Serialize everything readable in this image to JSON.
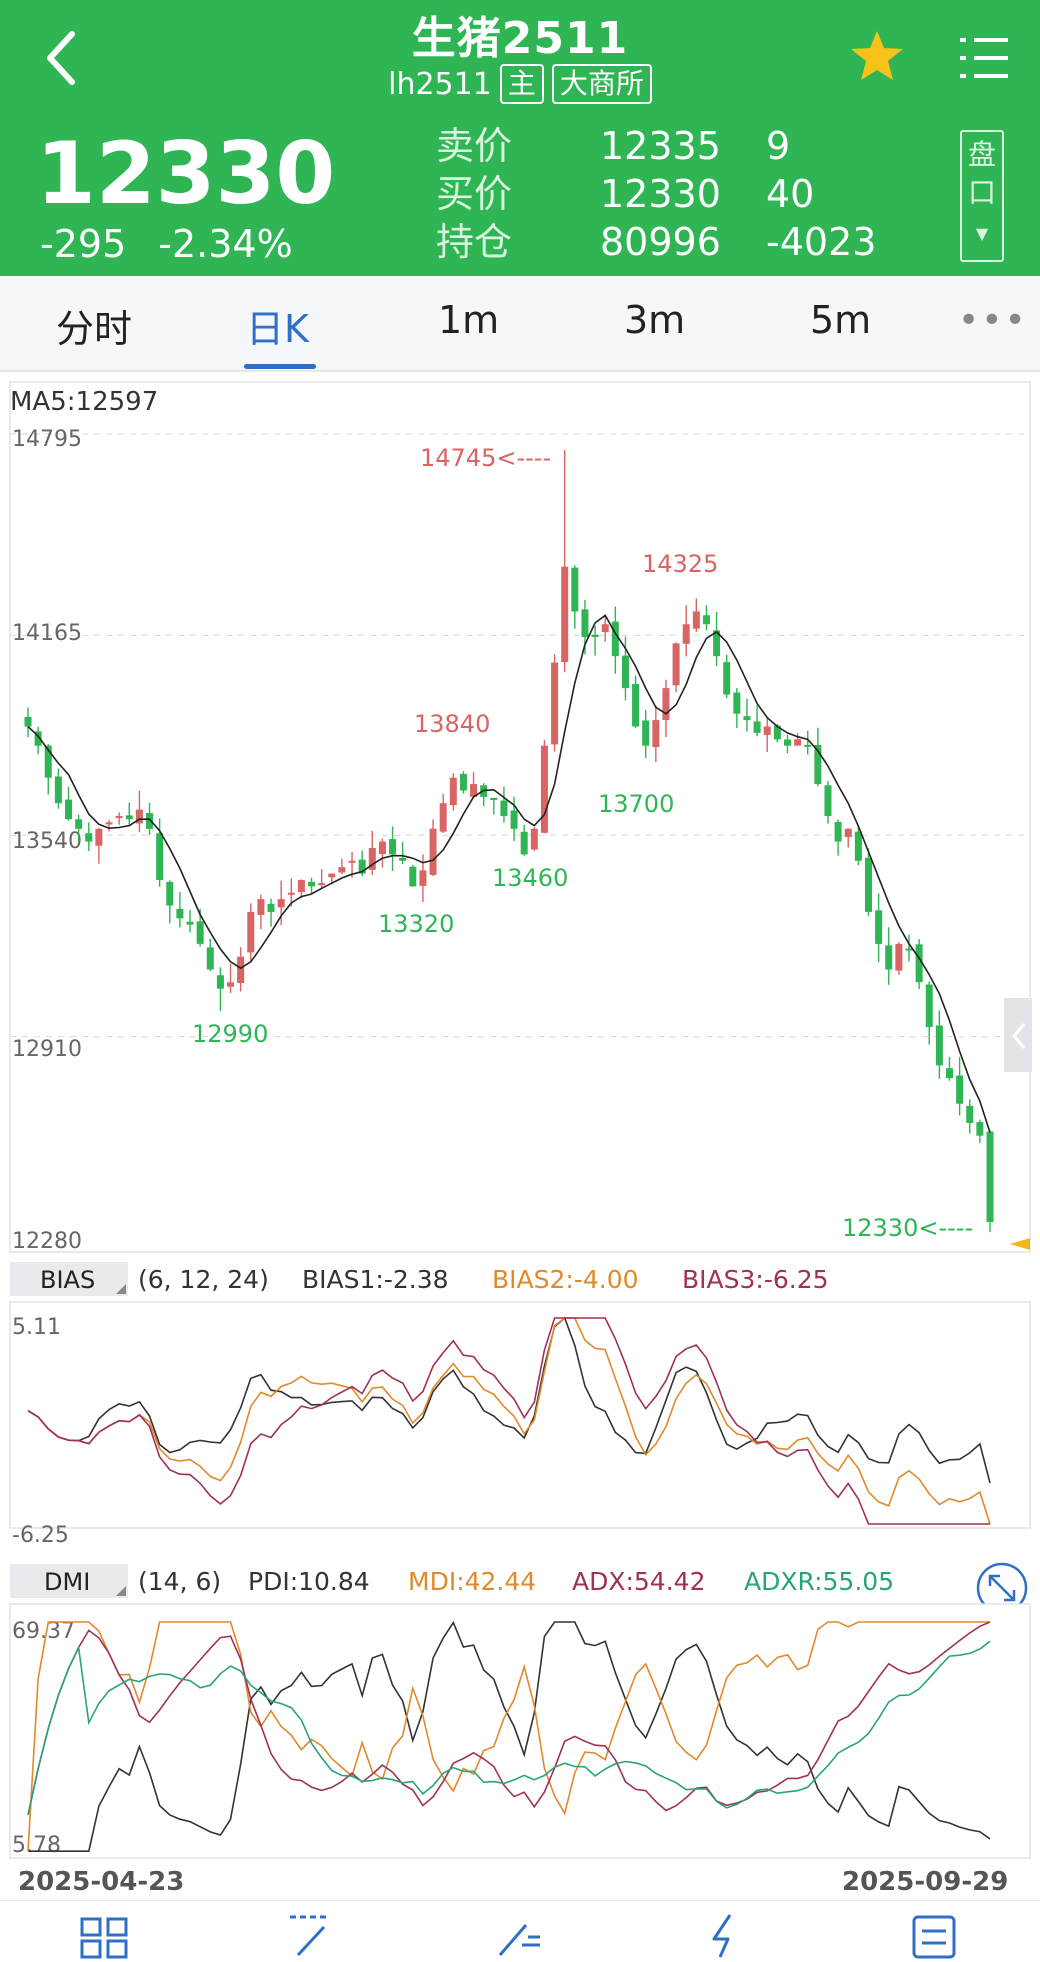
{
  "header": {
    "title": "生猪2511",
    "code": "lh2511",
    "tag_main": "主",
    "tag_exchange": "大商所",
    "pankou": "盘口",
    "price": "12330",
    "change": "-295",
    "change_pct": "-2.34%",
    "quotes": [
      {
        "label": "卖价",
        "v1": "12335",
        "v2": "9"
      },
      {
        "label": "买价",
        "v1": "12330",
        "v2": "40"
      },
      {
        "label": "持仓",
        "v1": "80996",
        "v2": "-4023"
      }
    ],
    "color": "#2fb554"
  },
  "tabs": [
    "分时",
    "日K",
    "1m",
    "3m",
    "5m"
  ],
  "active_tab": "日K",
  "chart_data": [
    {
      "type": "candlestick",
      "ma_label": "MA5:12597",
      "ylabels": [
        "14795",
        "14165",
        "13540",
        "12910",
        "12280"
      ],
      "ylim": [
        12280,
        14795
      ],
      "annotations": [
        "14745<----",
        "14325",
        "13840",
        "13700",
        "13460",
        "13320",
        "12990",
        "12330<----"
      ],
      "close": [
        13880,
        13820,
        13720,
        13640,
        13590,
        13560,
        13520,
        13560,
        13580,
        13600,
        13590,
        13620,
        13560,
        13400,
        13320,
        13280,
        13260,
        13200,
        13120,
        13060,
        13080,
        13160,
        13300,
        13340,
        13300,
        13340,
        13360,
        13400,
        13380,
        13390,
        13420,
        13440,
        13460,
        13420,
        13500,
        13520,
        13480,
        13460,
        13380,
        13430,
        13560,
        13640,
        13720,
        13680,
        13700,
        13660,
        13650,
        13600,
        13560,
        13480,
        13560,
        13820,
        14080,
        14380,
        14240,
        14160,
        14160,
        14200,
        14100,
        14000,
        13880,
        13820,
        13900,
        14000,
        14140,
        14200,
        14240,
        14200,
        14100,
        13980,
        13920,
        13900,
        13860,
        13880,
        13840,
        13820,
        13840,
        13820,
        13700,
        13600,
        13520,
        13560,
        13460,
        13300,
        13200,
        13120,
        13200,
        13180,
        13080,
        12940,
        12820,
        12780,
        12700,
        12640,
        12600,
        12330
      ],
      "up_color": "#d96464",
      "down_color": "#2fb554"
    },
    {
      "type": "line",
      "name": "BIAS",
      "params": "(6, 12, 24)",
      "series_labels": [
        "BIAS1:-2.38",
        "BIAS2:-4.00",
        "BIAS3:-6.25"
      ],
      "ylabels": [
        "5.11",
        "-6.25"
      ],
      "ylim": [
        -6.25,
        5.11
      ],
      "colors": [
        "#333333",
        "#e08a2c",
        "#a0305a"
      ]
    },
    {
      "type": "line",
      "name": "DMI",
      "params": "(14, 6)",
      "series_labels": [
        "PDI:10.84",
        "MDI:42.44",
        "ADX:54.42",
        "ADXR:55.05"
      ],
      "ylabels": [
        "69.37",
        "5.78"
      ],
      "ylim": [
        5.78,
        69.37
      ],
      "colors": [
        "#333333",
        "#e08a2c",
        "#a0305a",
        "#2aa37a"
      ]
    }
  ],
  "dates": {
    "start": "2025-04-23",
    "end": "2025-09-29"
  }
}
